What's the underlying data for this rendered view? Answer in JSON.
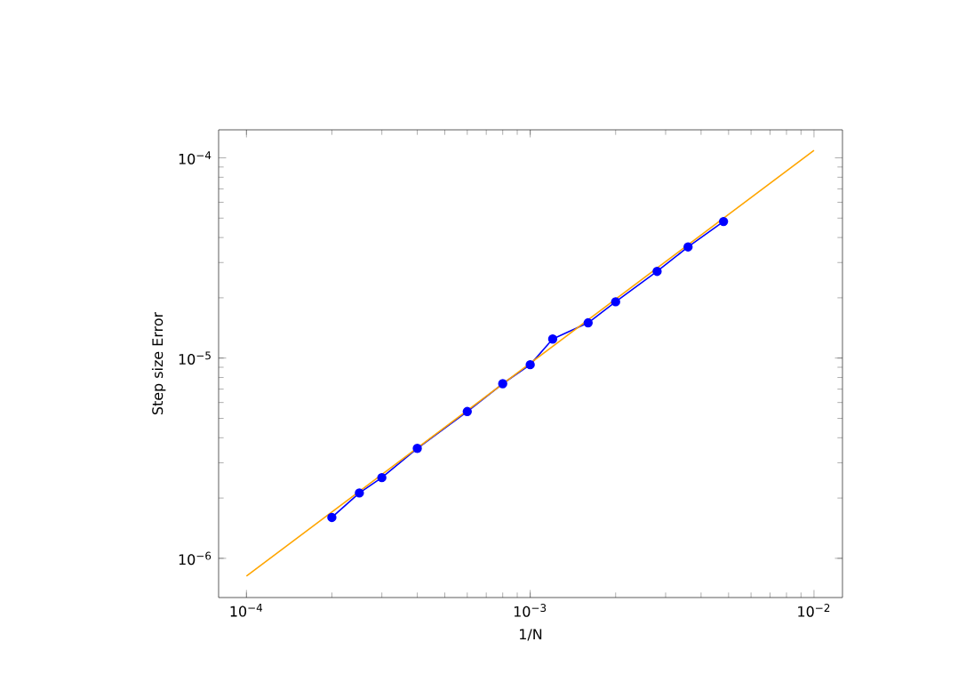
{
  "chart_data": {
    "type": "line",
    "xlabel": "1/N",
    "ylabel": "Step size Error",
    "log": "xy",
    "xlim": [
      7.98e-05,
      0.0126
    ],
    "ylim": [
      6.37e-07,
      0.000138
    ],
    "xticks": [
      {
        "value": 0.0001,
        "label": "10$^{−4}$"
      },
      {
        "value": 0.001,
        "label": "10$^{−3}$"
      },
      {
        "value": 0.01,
        "label": "10$^{−2}$"
      }
    ],
    "yticks": [
      {
        "value": 1e-06,
        "label": "10$^{−6}$"
      },
      {
        "value": 1e-05,
        "label": "10$^{−5}$"
      },
      {
        "value": 0.0001,
        "label": "10$^{−4}$"
      }
    ],
    "series": [
      {
        "color": "#0000ff",
        "marker": "circle",
        "x": [
          0.0002,
          0.00025,
          0.0003,
          0.0004,
          0.0006,
          0.0008,
          0.001,
          0.0012,
          0.0016,
          0.002,
          0.0028,
          0.0036,
          0.0048
        ],
        "values": [
          1.6e-06,
          2.12e-06,
          2.53e-06,
          3.54e-06,
          5.41e-06,
          7.45e-06,
          9.27e-06,
          1.245e-05,
          1.5e-05,
          1.91e-05,
          2.71e-05,
          3.59e-05,
          4.81e-05
        ]
      },
      {
        "color": "#ffa500",
        "marker": "none",
        "x": [
          0.0001,
          0.01
        ],
        "values": [
          8.15e-07,
          0.000109
        ]
      }
    ]
  }
}
